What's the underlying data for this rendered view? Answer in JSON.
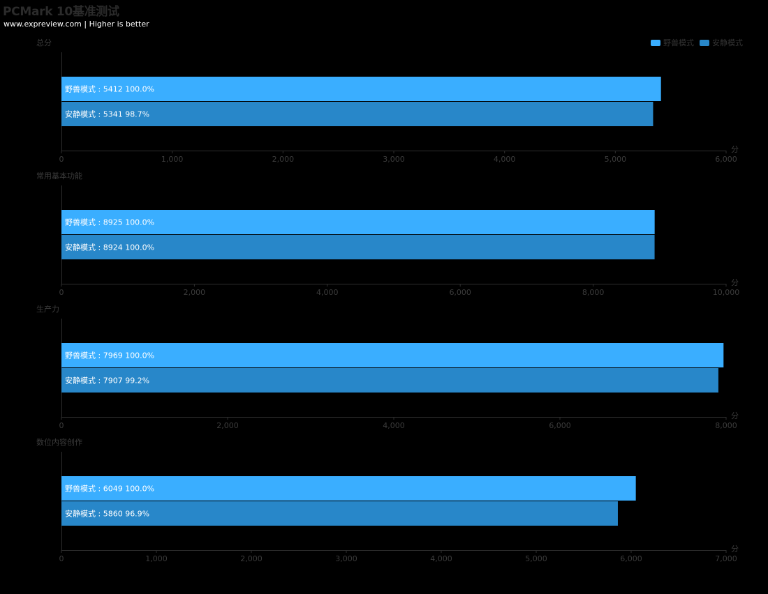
{
  "header": {
    "title": "PCMark 10基准测试",
    "subtitle": "www.expreview.com | Higher is better"
  },
  "legend": [
    {
      "name": "野兽模式",
      "color": "#3aaeff"
    },
    {
      "name": "安静模式",
      "color": "#2887c9"
    }
  ],
  "colors": {
    "axis": "#2e2e2e",
    "tick_text": "#3c3c3c",
    "bar_label": "#ffffff"
  },
  "chart_data": [
    {
      "type": "bar",
      "orientation": "horizontal",
      "title": "总分",
      "unit": "分",
      "xlim": [
        0,
        6000
      ],
      "ticks": [
        "0",
        "1,000",
        "2,000",
        "3,000",
        "4,000",
        "5,000",
        "6,000"
      ],
      "series": [
        {
          "name": "野兽模式",
          "value": 5412,
          "percent": "100.0%"
        },
        {
          "name": "安静模式",
          "value": 5341,
          "percent": "98.7%"
        }
      ]
    },
    {
      "type": "bar",
      "orientation": "horizontal",
      "title": "常用基本功能",
      "unit": "分",
      "xlim": [
        0,
        10000
      ],
      "ticks": [
        "0",
        "2,000",
        "4,000",
        "6,000",
        "8,000",
        "10,000"
      ],
      "series": [
        {
          "name": "野兽模式",
          "value": 8925,
          "percent": "100.0%"
        },
        {
          "name": "安静模式",
          "value": 8924,
          "percent": "100.0%"
        }
      ]
    },
    {
      "type": "bar",
      "orientation": "horizontal",
      "title": "生产力",
      "unit": "分",
      "xlim": [
        0,
        8000
      ],
      "ticks": [
        "0",
        "2,000",
        "4,000",
        "6,000",
        "8,000"
      ],
      "series": [
        {
          "name": "野兽模式",
          "value": 7969,
          "percent": "100.0%"
        },
        {
          "name": "安静模式",
          "value": 7907,
          "percent": "99.2%"
        }
      ]
    },
    {
      "type": "bar",
      "orientation": "horizontal",
      "title": "数位内容创作",
      "unit": "分",
      "xlim": [
        0,
        7000
      ],
      "ticks": [
        "0",
        "1,000",
        "2,000",
        "3,000",
        "4,000",
        "5,000",
        "6,000",
        "7,000"
      ],
      "series": [
        {
          "name": "野兽模式",
          "value": 6049,
          "percent": "100.0%"
        },
        {
          "name": "安静模式",
          "value": 5860,
          "percent": "96.9%"
        }
      ]
    }
  ]
}
